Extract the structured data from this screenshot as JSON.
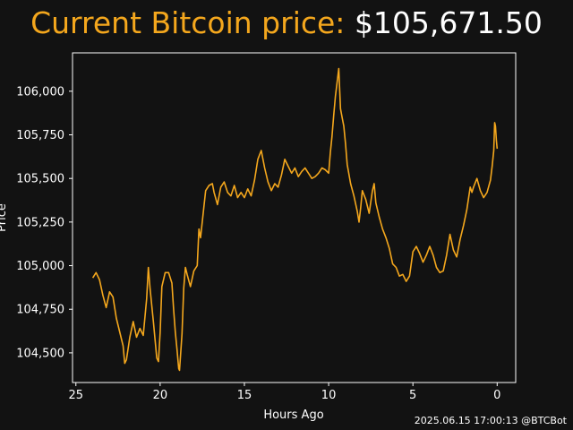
{
  "title": {
    "label": "Current Bitcoin price:",
    "value": "$105,671.50"
  },
  "footer": {
    "timestamp": "2025.06.15 17:00:13",
    "handle": "@BTCBot"
  },
  "colors": {
    "background": "#121212",
    "accent": "#f4a71d",
    "text": "#ffffff"
  },
  "chart_data": {
    "type": "line",
    "xlabel": "Hours Ago",
    "ylabel": "Price",
    "x_reversed": true,
    "xlim": [
      25.2,
      -1.1
    ],
    "ylim": [
      104330,
      106220
    ],
    "xticks": [
      25,
      20,
      15,
      10,
      5,
      0
    ],
    "yticks": [
      104500,
      104750,
      105000,
      105250,
      105500,
      105750,
      106000
    ],
    "ytick_labels": [
      "104,500",
      "104,750",
      "105,000",
      "105,250",
      "105,500",
      "105,750",
      "106,000"
    ],
    "grid": false,
    "series": [
      {
        "points": [
          [
            24.0,
            104930
          ],
          [
            23.8,
            104960
          ],
          [
            23.6,
            104920
          ],
          [
            23.4,
            104830
          ],
          [
            23.2,
            104760
          ],
          [
            23.0,
            104850
          ],
          [
            22.8,
            104820
          ],
          [
            22.6,
            104700
          ],
          [
            22.4,
            104620
          ],
          [
            22.2,
            104540
          ],
          [
            22.1,
            104440
          ],
          [
            22.0,
            104460
          ],
          [
            21.8,
            104590
          ],
          [
            21.6,
            104680
          ],
          [
            21.4,
            104590
          ],
          [
            21.2,
            104640
          ],
          [
            21.0,
            104600
          ],
          [
            20.8,
            104810
          ],
          [
            20.7,
            104990
          ],
          [
            20.6,
            104870
          ],
          [
            20.4,
            104680
          ],
          [
            20.2,
            104470
          ],
          [
            20.1,
            104450
          ],
          [
            20.0,
            104620
          ],
          [
            19.9,
            104880
          ],
          [
            19.7,
            104960
          ],
          [
            19.5,
            104960
          ],
          [
            19.3,
            104900
          ],
          [
            19.2,
            104750
          ],
          [
            19.1,
            104620
          ],
          [
            19.0,
            104520
          ],
          [
            18.9,
            104410
          ],
          [
            18.85,
            104400
          ],
          [
            18.7,
            104610
          ],
          [
            18.6,
            104870
          ],
          [
            18.5,
            104990
          ],
          [
            18.4,
            104950
          ],
          [
            18.2,
            104880
          ],
          [
            18.0,
            104970
          ],
          [
            17.8,
            105000
          ],
          [
            17.7,
            105210
          ],
          [
            17.6,
            105160
          ],
          [
            17.4,
            105340
          ],
          [
            17.3,
            105430
          ],
          [
            17.1,
            105460
          ],
          [
            16.9,
            105470
          ],
          [
            16.8,
            105420
          ],
          [
            16.6,
            105350
          ],
          [
            16.4,
            105450
          ],
          [
            16.2,
            105480
          ],
          [
            16.0,
            105420
          ],
          [
            15.8,
            105400
          ],
          [
            15.6,
            105460
          ],
          [
            15.4,
            105390
          ],
          [
            15.2,
            105420
          ],
          [
            15.0,
            105390
          ],
          [
            14.8,
            105440
          ],
          [
            14.6,
            105400
          ],
          [
            14.4,
            105490
          ],
          [
            14.2,
            105610
          ],
          [
            14.0,
            105660
          ],
          [
            13.8,
            105560
          ],
          [
            13.6,
            105480
          ],
          [
            13.4,
            105430
          ],
          [
            13.2,
            105470
          ],
          [
            13.0,
            105450
          ],
          [
            12.8,
            105520
          ],
          [
            12.6,
            105610
          ],
          [
            12.4,
            105570
          ],
          [
            12.2,
            105530
          ],
          [
            12.0,
            105560
          ],
          [
            11.8,
            105510
          ],
          [
            11.6,
            105540
          ],
          [
            11.4,
            105560
          ],
          [
            11.2,
            105530
          ],
          [
            11.0,
            105500
          ],
          [
            10.8,
            105510
          ],
          [
            10.6,
            105530
          ],
          [
            10.4,
            105560
          ],
          [
            10.2,
            105550
          ],
          [
            10.0,
            105530
          ],
          [
            9.9,
            105650
          ],
          [
            9.8,
            105740
          ],
          [
            9.7,
            105860
          ],
          [
            9.6,
            105970
          ],
          [
            9.5,
            106050
          ],
          [
            9.4,
            106130
          ],
          [
            9.3,
            105900
          ],
          [
            9.2,
            105850
          ],
          [
            9.1,
            105800
          ],
          [
            9.0,
            105700
          ],
          [
            8.9,
            105580
          ],
          [
            8.7,
            105470
          ],
          [
            8.5,
            105400
          ],
          [
            8.3,
            105310
          ],
          [
            8.2,
            105250
          ],
          [
            8.1,
            105330
          ],
          [
            8.0,
            105430
          ],
          [
            7.8,
            105380
          ],
          [
            7.6,
            105300
          ],
          [
            7.4,
            105430
          ],
          [
            7.3,
            105470
          ],
          [
            7.2,
            105360
          ],
          [
            7.0,
            105280
          ],
          [
            6.8,
            105210
          ],
          [
            6.6,
            105160
          ],
          [
            6.4,
            105100
          ],
          [
            6.2,
            105010
          ],
          [
            6.0,
            104990
          ],
          [
            5.8,
            104940
          ],
          [
            5.6,
            104950
          ],
          [
            5.4,
            104910
          ],
          [
            5.2,
            104940
          ],
          [
            5.0,
            105080
          ],
          [
            4.8,
            105110
          ],
          [
            4.6,
            105070
          ],
          [
            4.4,
            105020
          ],
          [
            4.2,
            105060
          ],
          [
            4.0,
            105110
          ],
          [
            3.8,
            105060
          ],
          [
            3.6,
            104990
          ],
          [
            3.4,
            104960
          ],
          [
            3.2,
            104970
          ],
          [
            3.0,
            105060
          ],
          [
            2.8,
            105180
          ],
          [
            2.6,
            105090
          ],
          [
            2.4,
            105050
          ],
          [
            2.2,
            105150
          ],
          [
            2.0,
            105230
          ],
          [
            1.8,
            105320
          ],
          [
            1.6,
            105450
          ],
          [
            1.5,
            105420
          ],
          [
            1.4,
            105450
          ],
          [
            1.2,
            105500
          ],
          [
            1.0,
            105430
          ],
          [
            0.8,
            105390
          ],
          [
            0.6,
            105420
          ],
          [
            0.4,
            105490
          ],
          [
            0.3,
            105570
          ],
          [
            0.2,
            105660
          ],
          [
            0.15,
            105820
          ],
          [
            0.1,
            105800
          ],
          [
            0.05,
            105720
          ],
          [
            0.0,
            105670
          ]
        ]
      }
    ]
  }
}
